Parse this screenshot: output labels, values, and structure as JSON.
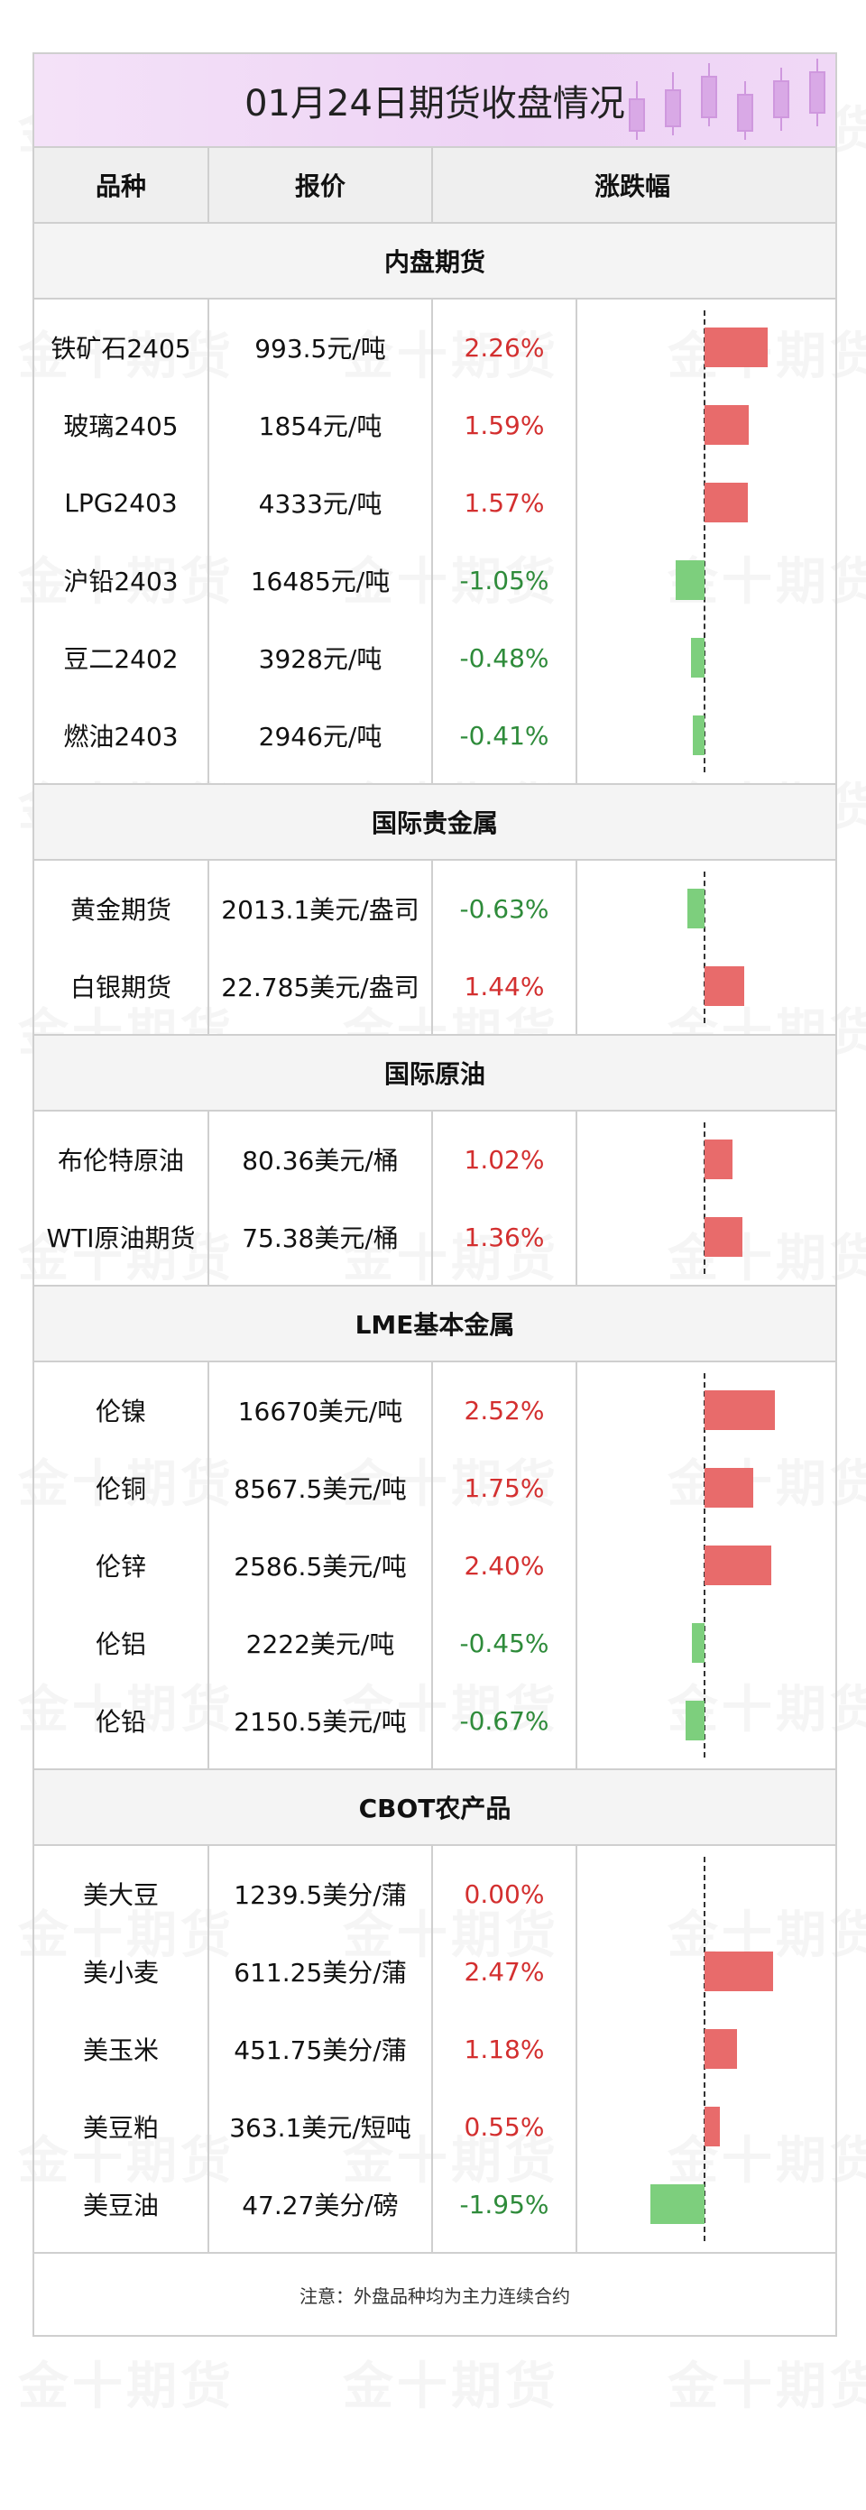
{
  "title": "01月24日期货收盘情况",
  "watermark": "金十期货",
  "headers": {
    "variety": "品种",
    "price": "报价",
    "change": "涨跌幅"
  },
  "colors": {
    "up": "#e86b6b",
    "down": "#7dcf7d",
    "up_text": "#d32f2f",
    "down_text": "#2e8b3a",
    "title_bg": "#eed3f5"
  },
  "sections": [
    {
      "title": "内盘期货",
      "rows": [
        {
          "name": "铁矿石2405",
          "price": "993.5元/吨",
          "change": "2.26%",
          "value": 2.26
        },
        {
          "name": "玻璃2405",
          "price": "1854元/吨",
          "change": "1.59%",
          "value": 1.59
        },
        {
          "name": "LPG2403",
          "price": "4333元/吨",
          "change": "1.57%",
          "value": 1.57
        },
        {
          "name": "沪铅2403",
          "price": "16485元/吨",
          "change": "-1.05%",
          "value": -1.05
        },
        {
          "name": "豆二2402",
          "price": "3928元/吨",
          "change": "-0.48%",
          "value": -0.48
        },
        {
          "name": "燃油2403",
          "price": "2946元/吨",
          "change": "-0.41%",
          "value": -0.41
        }
      ]
    },
    {
      "title": "国际贵金属",
      "rows": [
        {
          "name": "黄金期货",
          "price": "2013.1美元/盎司",
          "change": "-0.63%",
          "value": -0.63
        },
        {
          "name": "白银期货",
          "price": "22.785美元/盎司",
          "change": "1.44%",
          "value": 1.44
        }
      ]
    },
    {
      "title": "国际原油",
      "rows": [
        {
          "name": "布伦特原油",
          "price": "80.36美元/桶",
          "change": "1.02%",
          "value": 1.02
        },
        {
          "name": "WTI原油期货",
          "price": "75.38美元/桶",
          "change": "1.36%",
          "value": 1.36
        }
      ]
    },
    {
      "title": "LME基本金属",
      "rows": [
        {
          "name": "伦镍",
          "price": "16670美元/吨",
          "change": "2.52%",
          "value": 2.52
        },
        {
          "name": "伦铜",
          "price": "8567.5美元/吨",
          "change": "1.75%",
          "value": 1.75
        },
        {
          "name": "伦锌",
          "price": "2586.5美元/吨",
          "change": "2.40%",
          "value": 2.4
        },
        {
          "name": "伦铝",
          "price": "2222美元/吨",
          "change": "-0.45%",
          "value": -0.45
        },
        {
          "name": "伦铅",
          "price": "2150.5美元/吨",
          "change": "-0.67%",
          "value": -0.67
        }
      ]
    },
    {
      "title": "CBOT农产品",
      "rows": [
        {
          "name": "美大豆",
          "price": "1239.5美分/蒲",
          "change": "0.00%",
          "value": 0.0
        },
        {
          "name": "美小麦",
          "price": "611.25美分/蒲",
          "change": "2.47%",
          "value": 2.47
        },
        {
          "name": "美玉米",
          "price": "451.75美分/蒲",
          "change": "1.18%",
          "value": 1.18
        },
        {
          "name": "美豆粕",
          "price": "363.1美元/短吨",
          "change": "0.55%",
          "value": 0.55
        },
        {
          "name": "美豆油",
          "price": "47.27美分/磅",
          "change": "-1.95%",
          "value": -1.95
        }
      ]
    }
  ],
  "note": "注意：外盘品种均为主力连续合约"
}
